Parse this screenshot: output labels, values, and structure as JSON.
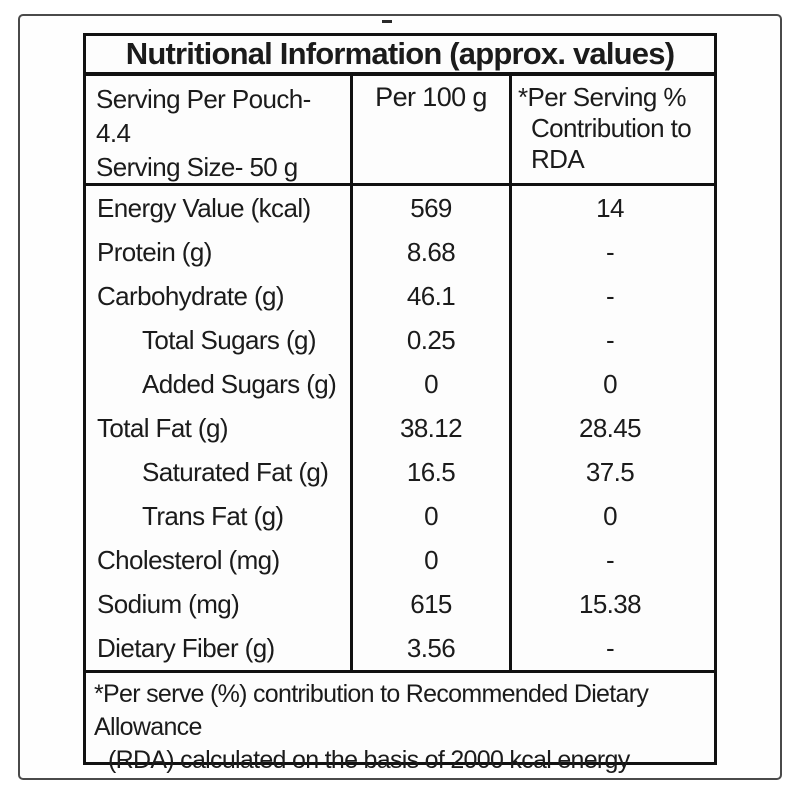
{
  "page": {
    "top_dash": "-"
  },
  "table": {
    "title": "Nutritional Information (approx. values)",
    "header": {
      "serving_line1": "Serving Per Pouch- 4.4",
      "serving_line2": "Serving Size- 50 g",
      "col_per100": "Per 100 g",
      "col_rda_line1": "*Per Serving %",
      "col_rda_line2": "Contribution to",
      "col_rda_line3": "RDA"
    },
    "rows": [
      {
        "label": "Energy Value (kcal)",
        "per100": "569",
        "rda": "14",
        "indent": false
      },
      {
        "label": "Protein (g)",
        "per100": "8.68",
        "rda": "-",
        "indent": false
      },
      {
        "label": "Carbohydrate (g)",
        "per100": "46.1",
        "rda": "-",
        "indent": false
      },
      {
        "label": "Total Sugars (g)",
        "per100": "0.25",
        "rda": "-",
        "indent": true
      },
      {
        "label": "Added Sugars (g)",
        "per100": "0",
        "rda": "0",
        "indent": true
      },
      {
        "label": "Total Fat (g)",
        "per100": "38.12",
        "rda": "28.45",
        "indent": false
      },
      {
        "label": "Saturated Fat (g)",
        "per100": "16.5",
        "rda": "37.5",
        "indent": true
      },
      {
        "label": "Trans Fat (g)",
        "per100": "0",
        "rda": "0",
        "indent": true
      },
      {
        "label": "Cholesterol (mg)",
        "per100": "0",
        "rda": "-",
        "indent": false
      },
      {
        "label": "Sodium (mg)",
        "per100": "615",
        "rda": "15.38",
        "indent": false
      },
      {
        "label": "Dietary Fiber (g)",
        "per100": "3.56",
        "rda": "-",
        "indent": false
      }
    ],
    "footnote_line1": "*Per serve (%) contribution to Recommended Dietary Allowance",
    "footnote_line2": "(RDA) calculated on the basis of 2000 kcal energy"
  },
  "colors": {
    "table_border": "#111111",
    "outer_frame": "#4a4a4a",
    "text": "#1b1b1b",
    "background": "#ffffff"
  }
}
